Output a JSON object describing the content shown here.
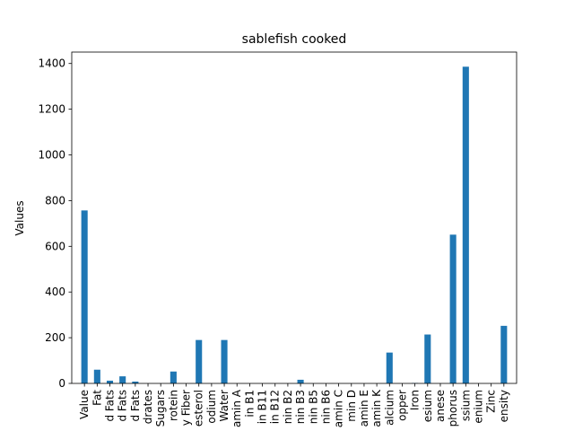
{
  "chart_data": {
    "type": "bar",
    "title": "sablefish cooked",
    "xlabel": "",
    "ylabel": "Values",
    "ylim": [
      0,
      1450
    ],
    "yticks": [
      0,
      200,
      400,
      600,
      800,
      1000,
      1200,
      1400
    ],
    "grid": false,
    "bar_color": "#1f77b4",
    "categories": [
      "Value",
      "Fat",
      "d Fats",
      "d Fats",
      "d Fats",
      "drates",
      "Sugars",
      "rotein",
      "y Fiber",
      "esterol",
      "odium",
      "Water",
      "amin A",
      "in B1",
      "in B11",
      "in B12",
      "nin B2",
      "nin B3",
      "nin B5",
      "nin B6",
      "amin C",
      "min D",
      "amin E",
      "amin K",
      "alcium",
      "opper",
      "Iron",
      "esium",
      "anese",
      "phorus",
      "ssium",
      "enium",
      "Zinc",
      "ensity"
    ],
    "values": [
      757,
      60,
      12,
      31,
      8,
      0,
      0,
      52,
      0,
      190,
      0,
      190,
      0,
      0,
      0,
      0,
      0,
      16,
      0,
      0,
      0,
      0,
      0,
      0,
      135,
      0,
      2,
      214,
      0,
      651,
      1386,
      0,
      0,
      252
    ]
  }
}
